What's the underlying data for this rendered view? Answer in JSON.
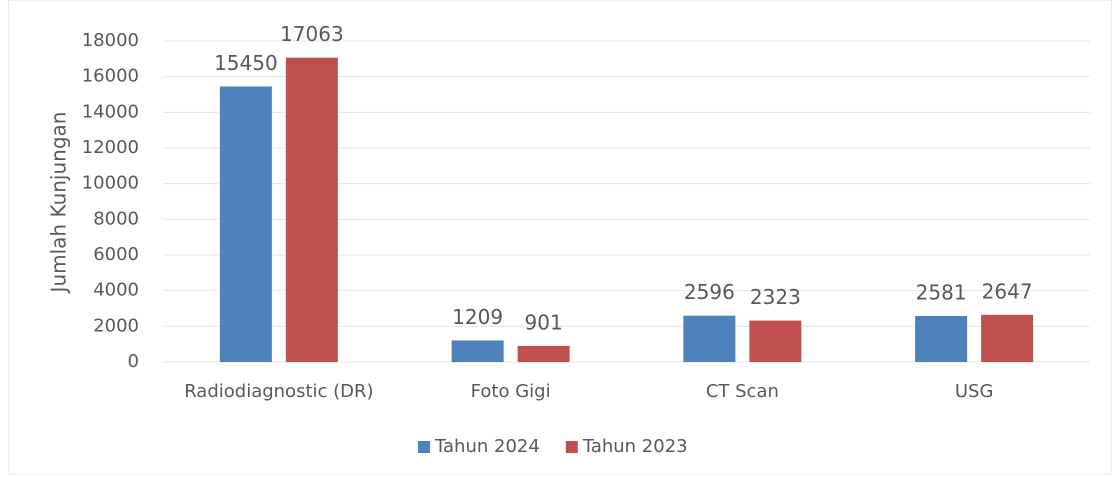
{
  "chart_data": {
    "type": "bar",
    "y_label": "Jumlah Kunjungan",
    "categories": [
      "Radiodiagnostic (DR)",
      "Foto Gigi",
      "CT Scan",
      "USG"
    ],
    "series": [
      {
        "name": "Tahun 2024",
        "color": "#4f81bd",
        "values": [
          15450,
          1209,
          2596,
          2581
        ]
      },
      {
        "name": "Tahun 2023",
        "color": "#c0504d",
        "values": [
          17063,
          901,
          2323,
          2647
        ]
      }
    ],
    "ylim": [
      0,
      18000
    ],
    "yticks": [
      0,
      2000,
      4000,
      6000,
      8000,
      10000,
      12000,
      14000,
      16000,
      18000
    ],
    "grid": true,
    "legend": "bottom"
  }
}
